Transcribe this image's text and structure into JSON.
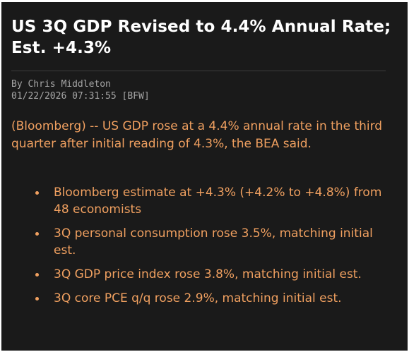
{
  "article": {
    "headline": "US 3Q GDP Revised to 4.4% Annual Rate; Est. +4.3%",
    "byline": "By Chris Middleton",
    "timestamp": "01/22/2026 07:31:55 [BFW]",
    "lede": "(Bloomberg) -- US GDP rose at a 4.4% annual rate in the third quarter after initial reading of 4.3%, the BEA said.",
    "bullets": [
      "Bloomberg estimate at +4.3% (+4.2% to +4.8%) from 48 economists",
      "3Q personal consumption rose 3.5%, matching initial est.",
      "3Q GDP price index rose 3.8%, matching initial est.",
      "3Q core PCE q/q rose 2.9%, matching initial est."
    ]
  },
  "colors": {
    "background": "#1a1a1a",
    "headline": "#ffffff",
    "meta": "#a6a6a6",
    "body_accent": "#f0a060"
  }
}
